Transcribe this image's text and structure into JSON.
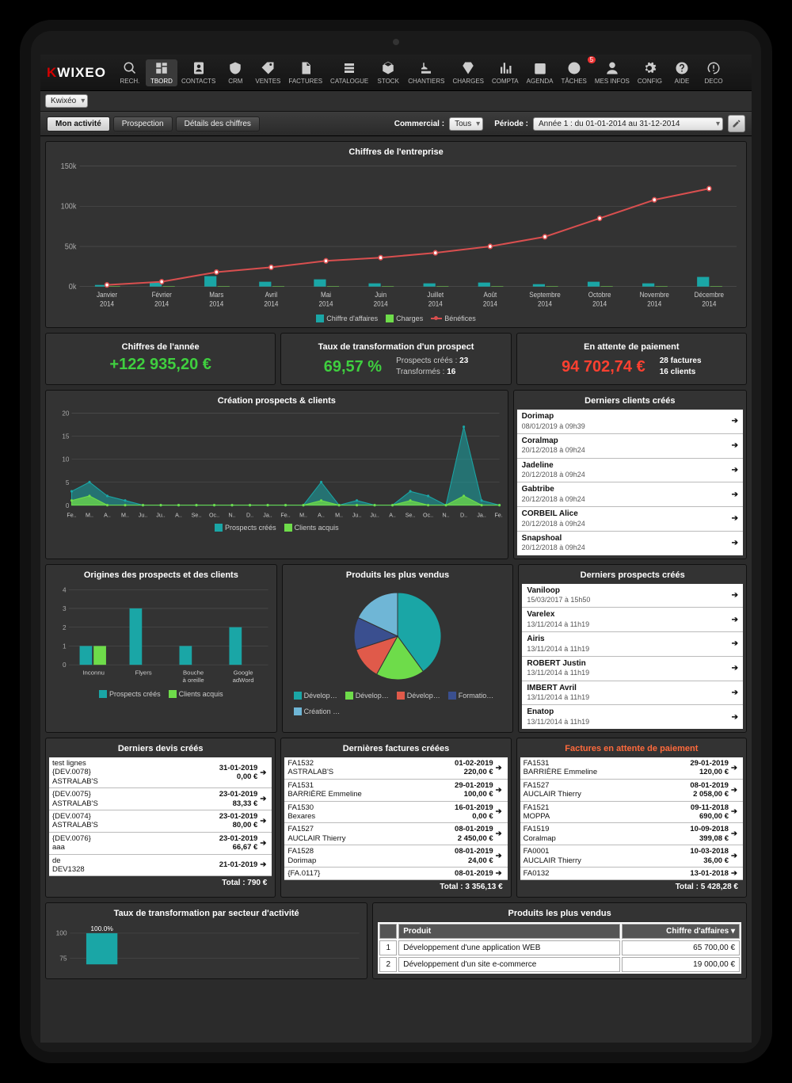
{
  "logo": {
    "k": "K",
    "rest": "WIXEO"
  },
  "sub_dropdown": "Kwixéo",
  "nav": [
    {
      "key": "rech",
      "label": "RECH."
    },
    {
      "key": "tbord",
      "label": "TBORD",
      "active": true
    },
    {
      "key": "contacts",
      "label": "CONTACTS"
    },
    {
      "key": "crm",
      "label": "CRM"
    },
    {
      "key": "ventes",
      "label": "VENTES"
    },
    {
      "key": "factures",
      "label": "FACTURES"
    },
    {
      "key": "catalogue",
      "label": "CATALOGUE"
    },
    {
      "key": "stock",
      "label": "STOCK"
    },
    {
      "key": "chantiers",
      "label": "CHANTIERS"
    },
    {
      "key": "charges",
      "label": "CHARGES"
    },
    {
      "key": "compta",
      "label": "COMPTA"
    },
    {
      "key": "agenda",
      "label": "AGENDA"
    },
    {
      "key": "taches",
      "label": "TÂCHES",
      "badge": "5"
    },
    {
      "key": "mesinfos",
      "label": "MES INFOS"
    },
    {
      "key": "config",
      "label": "CONFIG"
    },
    {
      "key": "aide",
      "label": "AIDE"
    },
    {
      "key": "deco",
      "label": "DECO"
    }
  ],
  "tabs": [
    "Mon activité",
    "Prospection",
    "Détails des chiffres"
  ],
  "active_tab": 0,
  "filters": {
    "commercial_label": "Commercial :",
    "commercial_value": "Tous",
    "periode_label": "Période :",
    "periode_value": "Année 1 : du 01-01-2014 au 31-12-2014"
  },
  "main_chart": {
    "title": "Chiffres de l'entreprise",
    "ylim": [
      0,
      150000
    ],
    "yticks": [
      "0k",
      "50k",
      "100k",
      "150k"
    ],
    "months": [
      "Janvier 2014",
      "Février 2014",
      "Mars 2014",
      "Avril 2014",
      "Mai 2014",
      "Juin 2014",
      "Juillet 2014",
      "Août 2014",
      "Septembre 2014",
      "Octobre 2014",
      "Novembre 2014",
      "Décembre 2014"
    ],
    "chiffre": [
      2000,
      5000,
      13000,
      6000,
      9000,
      4000,
      4000,
      5000,
      3000,
      6000,
      4000,
      12000
    ],
    "charges": [
      500,
      500,
      500,
      500,
      500,
      500,
      500,
      500,
      500,
      500,
      500,
      500
    ],
    "benefices": [
      2000,
      6000,
      18000,
      24000,
      32000,
      36000,
      42000,
      50000,
      62000,
      85000,
      108000,
      122000
    ],
    "colors": {
      "chiffre": "#1aa6a6",
      "charges": "#6edc4a",
      "benefices": "#d94f4f",
      "grid": "#555",
      "text": "#ccc"
    },
    "legend": [
      "Chiffre d'affaires",
      "Charges",
      "Bénéfices"
    ]
  },
  "stats": {
    "annee": {
      "title": "Chiffres de l'année",
      "value": "+122 935,20 €"
    },
    "taux": {
      "title": "Taux de transformation d'un prospect",
      "value": "69,57 %",
      "sub": [
        [
          "Prospects créés :",
          "23"
        ],
        [
          "Transformés :",
          "16"
        ]
      ]
    },
    "attente": {
      "title": "En attente de paiement",
      "value": "94 702,74 €",
      "sub": [
        [
          "",
          "28 factures"
        ],
        [
          "",
          "16 clients"
        ]
      ]
    }
  },
  "prospects_chart": {
    "title": "Création prospects & clients",
    "ylim": [
      0,
      20
    ],
    "yticks": [
      "0",
      "5",
      "10",
      "15",
      "20"
    ],
    "months": [
      "Fe..",
      "M..",
      "A..",
      "M..",
      "Ju..",
      "Ju..",
      "A..",
      "Se..",
      "Oc..",
      "N..",
      "D..",
      "Ja..",
      "Fe..",
      "M..",
      "A..",
      "M..",
      "Ju..",
      "Ju..",
      "A..",
      "Se..",
      "Oc..",
      "N..",
      "D..",
      "Ja..",
      "Fe.."
    ],
    "prospects": [
      3,
      5,
      2,
      1,
      0,
      0,
      0,
      0,
      0,
      0,
      0,
      0,
      0,
      0,
      5,
      0,
      1,
      0,
      0,
      3,
      2,
      0,
      17,
      1,
      0
    ],
    "clients": [
      1,
      2,
      0,
      0,
      0,
      0,
      0,
      0,
      0,
      0,
      0,
      0,
      0,
      0,
      1,
      0,
      0,
      0,
      0,
      1,
      0,
      0,
      2,
      0,
      0
    ],
    "colors": {
      "prospects": "#1aa6a6",
      "clients": "#6edc4a"
    },
    "legend": [
      "Prospects créés",
      "Clients acquis"
    ]
  },
  "derniers_clients": {
    "title": "Derniers clients créés",
    "items": [
      {
        "name": "Dorimap",
        "date": "08/01/2019 à 09h39"
      },
      {
        "name": "Coralmap",
        "date": "20/12/2018 à 09h24"
      },
      {
        "name": "Jadeline",
        "date": "20/12/2018 à 09h24"
      },
      {
        "name": "Gabtribe",
        "date": "20/12/2018 à 09h24"
      },
      {
        "name": "CORBEIL Alice",
        "date": "20/12/2018 à 09h24"
      },
      {
        "name": "Snapshoal",
        "date": "20/12/2018 à 09h24"
      }
    ]
  },
  "origines": {
    "title": "Origines des prospects et des clients",
    "ylim": [
      0,
      4
    ],
    "yticks": [
      "0",
      "1",
      "2",
      "3",
      "4"
    ],
    "categories": [
      "Inconnu",
      "Flyers",
      "Bouche à oreille",
      "Google adWord"
    ],
    "prospects": [
      1,
      3,
      1,
      2
    ],
    "clients": [
      1,
      0,
      0,
      0
    ],
    "colors": {
      "prospects": "#1aa6a6",
      "clients": "#6edc4a"
    },
    "legend": [
      "Prospects créés",
      "Clients acquis"
    ]
  },
  "pie": {
    "title": "Produits les plus vendus",
    "slices": [
      {
        "label": "Dévelop…",
        "value": 40,
        "color": "#1aa6a6"
      },
      {
        "label": "Dévelop…",
        "value": 18,
        "color": "#6edc4a"
      },
      {
        "label": "Dévelop…",
        "value": 12,
        "color": "#e05a4a"
      },
      {
        "label": "Formatio…",
        "value": 12,
        "color": "#3a4f8f"
      },
      {
        "label": "Création …",
        "value": 18,
        "color": "#6fb6d6"
      }
    ],
    "legend_labels": [
      "Dévelop…",
      "Dévelop…",
      "Dévelop…",
      "Formatio…",
      "Création …"
    ]
  },
  "derniers_prospects": {
    "title": "Derniers prospects créés",
    "items": [
      {
        "name": "Vaniloop",
        "date": "15/03/2017 à 15h50"
      },
      {
        "name": "Varelex",
        "date": "13/11/2014 à 11h19"
      },
      {
        "name": "Airis",
        "date": "13/11/2014 à 11h19"
      },
      {
        "name": "ROBERT Justin",
        "date": "13/11/2014 à 11h19"
      },
      {
        "name": "IMBERT Avril",
        "date": "13/11/2014 à 11h19"
      },
      {
        "name": "Enatop",
        "date": "13/11/2014 à 11h19"
      }
    ]
  },
  "devis": {
    "title": "Derniers devis créés",
    "rows": [
      {
        "l1": "test lignes",
        "l2": "{DEV.0078}",
        "d": "31-01-2019",
        "a": "0,00 €"
      },
      {
        "l1": "{DEV.0075}",
        "l2": "ASTRALAB'S",
        "d": "23-01-2019",
        "a": "83,33 €"
      },
      {
        "l1": "{DEV.0074}",
        "l2": "ASTRALAB'S",
        "d": "23-01-2019",
        "a": "80,00 €"
      },
      {
        "l1": "{DEV.0076}",
        "l2": "aaa",
        "d": "23-01-2019",
        "a": "66,67 €"
      },
      {
        "l1": "de",
        "l2": "DEV1328",
        "d": "21-01-2019",
        "a": ""
      }
    ],
    "row0_extra": "ASTRALAB'S",
    "total": "Total : 790 €"
  },
  "factures": {
    "title": "Dernières factures créées",
    "rows": [
      {
        "l1": "FA1532",
        "l2": "ASTRALAB'S",
        "d": "01-02-2019",
        "a": "220,00 €"
      },
      {
        "l1": "FA1531",
        "l2": "BARRIÈRE Emmeline",
        "d": "29-01-2019",
        "a": "100,00 €"
      },
      {
        "l1": "FA1530",
        "l2": "Bexares",
        "d": "16-01-2019",
        "a": "0,00 €"
      },
      {
        "l1": "FA1527",
        "l2": "AUCLAIR Thierry",
        "d": "08-01-2019",
        "a": "2 450,00 €"
      },
      {
        "l1": "FA1528",
        "l2": "Dorimap",
        "d": "08-01-2019",
        "a": "24,00 €"
      },
      {
        "l1": "{FA.0117}",
        "l2": "",
        "d": "08-01-2019",
        "a": ""
      }
    ],
    "total": "Total : 3 356,13 €"
  },
  "factures_attente": {
    "title": "Factures en attente de paiement",
    "rows": [
      {
        "l1": "FA1531",
        "l2": "BARRIÈRE Emmeline",
        "d": "29-01-2019",
        "a": "120,00 €"
      },
      {
        "l1": "FA1527",
        "l2": "AUCLAIR Thierry",
        "d": "08-01-2019",
        "a": "2 058,00 €"
      },
      {
        "l1": "FA1521",
        "l2": "MOPPA",
        "d": "09-11-2018",
        "a": "690,00 €"
      },
      {
        "l1": "FA1519",
        "l2": "Coralmap",
        "d": "10-09-2018",
        "a": "399,08 €"
      },
      {
        "l1": "FA0001",
        "l2": "AUCLAIR Thierry",
        "d": "10-03-2018",
        "a": "36,00 €"
      },
      {
        "l1": "FA0132",
        "l2": "",
        "d": "13-01-2018",
        "a": ""
      }
    ],
    "total": "Total : 5 428,28 €"
  },
  "taux_secteur": {
    "title": "Taux de transformation par secteur d'activité",
    "yticks": [
      "75",
      "100"
    ],
    "label": "100.0%",
    "bar_color": "#1aa6a6"
  },
  "produits_table": {
    "title": "Produits les plus vendus",
    "headers": [
      "",
      "Produit",
      "Chiffre d'affaires  ▾"
    ],
    "rows": [
      [
        "1",
        "Développement d'une application WEB",
        "65 700,00 €"
      ],
      [
        "2",
        "Développement d'un site e-commerce",
        "19 000,00 €"
      ]
    ]
  },
  "colors": {
    "panel_bg": "#333333",
    "screen_bg": "#2b2b2b",
    "accent": "#1aa6a6",
    "green": "#3fcf3f",
    "red": "#ff4030",
    "orange": "#ff6a3c"
  }
}
